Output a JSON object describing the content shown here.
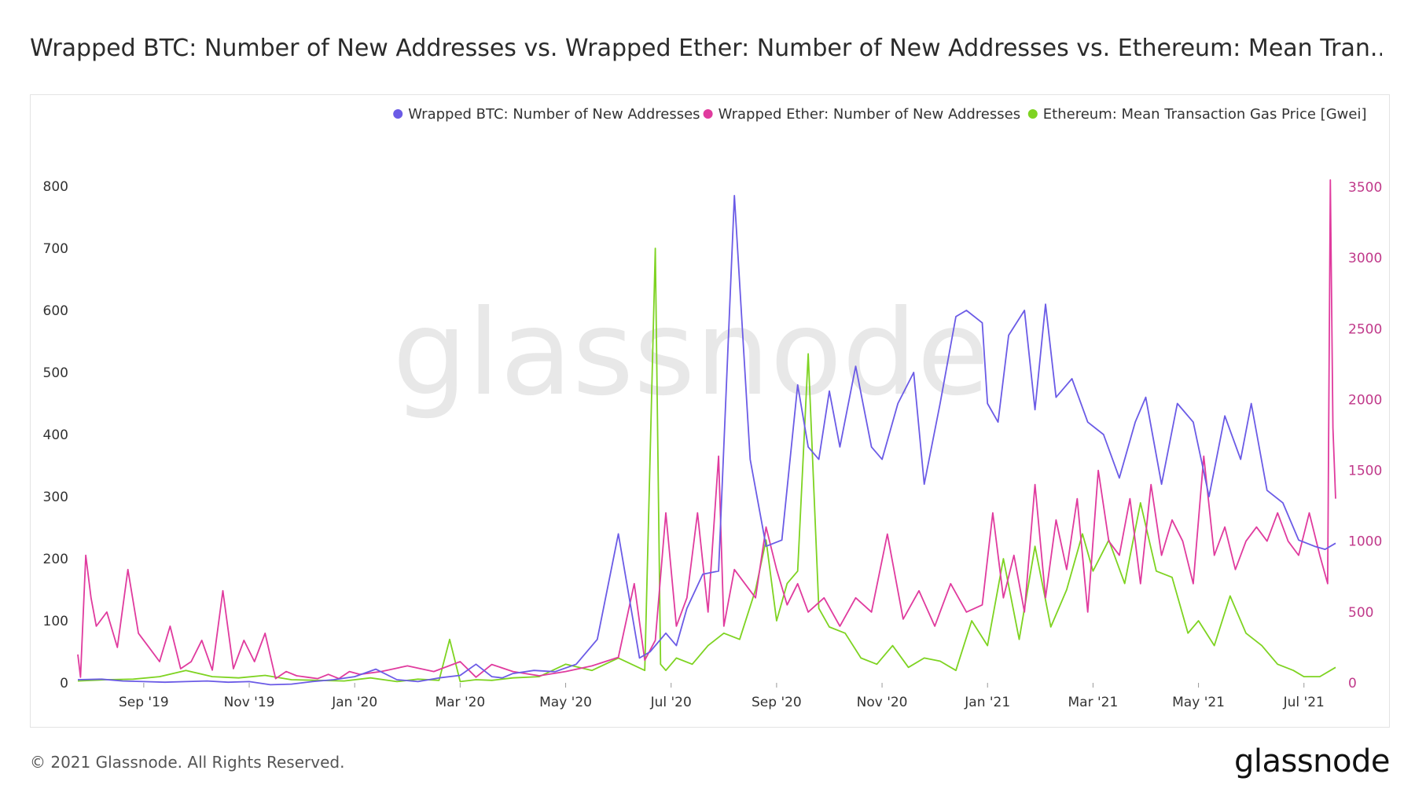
{
  "header": {
    "title": "Wrapped BTC: Number of New Addresses vs. Wrapped Ether: Number of New Addresses vs. Ethereum: Mean Tran..."
  },
  "footer": {
    "copyright": "© 2021 Glassnode. All Rights Reserved.",
    "brand": "glassnode"
  },
  "watermark": "glassnode",
  "chart_data": {
    "type": "line",
    "title": "Wrapped BTC: Number of New Addresses vs. Wrapped Ether: Number of New Addresses vs. Ethereum: Mean Transaction Gas Price [Gwei]",
    "legend_position": "top-right",
    "x_ticks": [
      "Sep '19",
      "Nov '19",
      "Jan '20",
      "Mar '20",
      "May '20",
      "Jul '20",
      "Sep '20",
      "Nov '20",
      "Jan '21",
      "Mar '21",
      "May '21",
      "Jul '21"
    ],
    "x_tick_months": [
      1,
      3,
      5,
      7,
      9,
      11,
      13,
      15,
      17,
      19,
      21,
      23
    ],
    "xlim_months": [
      -0.25,
      23.6
    ],
    "left_axis": {
      "ylim": [
        0,
        800
      ],
      "ticks": [
        0,
        100,
        200,
        300,
        400,
        500,
        600,
        700,
        800
      ],
      "color": "#333333"
    },
    "right_axis": {
      "ylim": [
        0,
        3550
      ],
      "ticks": [
        0,
        500,
        1000,
        1500,
        2000,
        2500,
        3000,
        3500
      ],
      "color": "#c0398a"
    },
    "series": [
      {
        "name": "Wrapped BTC: Number of New Addresses",
        "color": "#6b5be6",
        "axis": "left",
        "x_months": [
          -0.25,
          0.2,
          0.6,
          1.0,
          1.4,
          1.8,
          2.2,
          2.6,
          3.0,
          3.4,
          3.8,
          4.2,
          4.6,
          5.0,
          5.4,
          5.8,
          6.2,
          6.6,
          7.0,
          7.3,
          7.6,
          7.8,
          8.0,
          8.4,
          8.8,
          9.2,
          9.6,
          10.0,
          10.4,
          10.6,
          10.9,
          11.1,
          11.3,
          11.6,
          11.9,
          12.2,
          12.5,
          12.8,
          13.1,
          13.4,
          13.6,
          13.8,
          14.0,
          14.2,
          14.5,
          14.8,
          15.0,
          15.3,
          15.6,
          15.8,
          16.1,
          16.4,
          16.6,
          16.9,
          17.0,
          17.2,
          17.4,
          17.7,
          17.9,
          18.1,
          18.3,
          18.6,
          18.9,
          19.2,
          19.5,
          19.8,
          20.0,
          20.3,
          20.6,
          20.9,
          21.2,
          21.5,
          21.8,
          22.0,
          22.3,
          22.6,
          22.9,
          23.2,
          23.4,
          23.6
        ],
        "values": [
          5,
          6,
          3,
          2,
          1,
          2,
          3,
          1,
          2,
          -3,
          -2,
          2,
          5,
          10,
          22,
          5,
          2,
          8,
          12,
          30,
          10,
          8,
          15,
          20,
          18,
          30,
          70,
          240,
          40,
          50,
          80,
          60,
          120,
          175,
          180,
          785,
          360,
          220,
          230,
          480,
          380,
          360,
          470,
          380,
          510,
          380,
          360,
          450,
          500,
          320,
          450,
          590,
          600,
          580,
          450,
          420,
          560,
          600,
          440,
          610,
          460,
          490,
          420,
          400,
          330,
          420,
          460,
          320,
          450,
          420,
          300,
          430,
          360,
          450,
          310,
          290,
          230,
          220,
          215,
          225
        ]
      },
      {
        "name": "Wrapped Ether: Number of New Addresses",
        "color": "#e03b9e",
        "axis": "right",
        "x_months": [
          -0.25,
          -0.2,
          -0.1,
          0.0,
          0.1,
          0.3,
          0.5,
          0.7,
          0.9,
          1.1,
          1.3,
          1.5,
          1.7,
          1.9,
          2.1,
          2.3,
          2.5,
          2.7,
          2.9,
          3.1,
          3.3,
          3.5,
          3.7,
          3.9,
          4.1,
          4.3,
          4.5,
          4.7,
          4.9,
          5.1,
          5.5,
          6.0,
          6.5,
          7.0,
          7.3,
          7.6,
          8.0,
          8.5,
          9.0,
          9.5,
          10.0,
          10.3,
          10.5,
          10.7,
          10.9,
          11.1,
          11.3,
          11.5,
          11.7,
          11.9,
          12.0,
          12.2,
          12.4,
          12.6,
          12.8,
          13.0,
          13.2,
          13.4,
          13.6,
          13.9,
          14.2,
          14.5,
          14.8,
          15.1,
          15.4,
          15.7,
          16.0,
          16.3,
          16.6,
          16.9,
          17.1,
          17.3,
          17.5,
          17.7,
          17.9,
          18.1,
          18.3,
          18.5,
          18.7,
          18.9,
          19.1,
          19.3,
          19.5,
          19.7,
          19.9,
          20.1,
          20.3,
          20.5,
          20.7,
          20.9,
          21.1,
          21.3,
          21.5,
          21.7,
          21.9,
          22.1,
          22.3,
          22.5,
          22.7,
          22.9,
          23.1,
          23.3,
          23.45,
          23.5,
          23.55,
          23.6
        ],
        "values": [
          200,
          40,
          900,
          600,
          400,
          500,
          250,
          800,
          350,
          250,
          150,
          400,
          100,
          150,
          300,
          90,
          650,
          100,
          300,
          150,
          350,
          30,
          80,
          50,
          40,
          30,
          60,
          30,
          80,
          60,
          80,
          120,
          80,
          150,
          40,
          130,
          80,
          50,
          80,
          120,
          180,
          700,
          160,
          300,
          1200,
          400,
          600,
          1200,
          500,
          1600,
          400,
          800,
          700,
          600,
          1100,
          800,
          550,
          700,
          500,
          600,
          400,
          600,
          500,
          1050,
          450,
          650,
          400,
          700,
          500,
          550,
          1200,
          600,
          900,
          500,
          1400,
          600,
          1150,
          800,
          1300,
          500,
          1500,
          1000,
          900,
          1300,
          700,
          1400,
          900,
          1150,
          1000,
          700,
          1600,
          900,
          1100,
          800,
          1000,
          1100,
          1000,
          1200,
          1000,
          900,
          1200,
          900,
          700,
          3550,
          1800,
          1300
        ]
      },
      {
        "name": "Ethereum: Mean Transaction Gas Price [Gwei]",
        "color": "#7ed321",
        "axis": "left",
        "x_months": [
          -0.25,
          0.3,
          0.8,
          1.3,
          1.8,
          2.3,
          2.8,
          3.3,
          3.8,
          4.3,
          4.8,
          5.3,
          5.8,
          6.2,
          6.6,
          6.8,
          7.0,
          7.3,
          7.6,
          8.0,
          8.5,
          9.0,
          9.5,
          10.0,
          10.5,
          10.7,
          10.8,
          10.9,
          11.1,
          11.4,
          11.7,
          12.0,
          12.3,
          12.6,
          12.8,
          13.0,
          13.2,
          13.4,
          13.6,
          13.8,
          14.0,
          14.3,
          14.6,
          14.9,
          15.2,
          15.5,
          15.8,
          16.1,
          16.4,
          16.7,
          17.0,
          17.3,
          17.6,
          17.9,
          18.2,
          18.5,
          18.8,
          19.0,
          19.3,
          19.6,
          19.9,
          20.2,
          20.5,
          20.8,
          21.0,
          21.3,
          21.6,
          21.9,
          22.2,
          22.5,
          22.8,
          23.0,
          23.3,
          23.6
        ],
        "values": [
          3,
          5,
          6,
          10,
          20,
          10,
          8,
          12,
          5,
          4,
          3,
          8,
          2,
          6,
          4,
          70,
          2,
          5,
          4,
          8,
          10,
          30,
          20,
          40,
          20,
          700,
          30,
          20,
          40,
          30,
          60,
          80,
          70,
          150,
          230,
          100,
          160,
          180,
          530,
          120,
          90,
          80,
          40,
          30,
          60,
          25,
          40,
          35,
          20,
          100,
          60,
          200,
          70,
          220,
          90,
          150,
          240,
          180,
          230,
          160,
          290,
          180,
          170,
          80,
          100,
          60,
          140,
          80,
          60,
          30,
          20,
          10,
          10,
          25
        ]
      }
    ]
  }
}
